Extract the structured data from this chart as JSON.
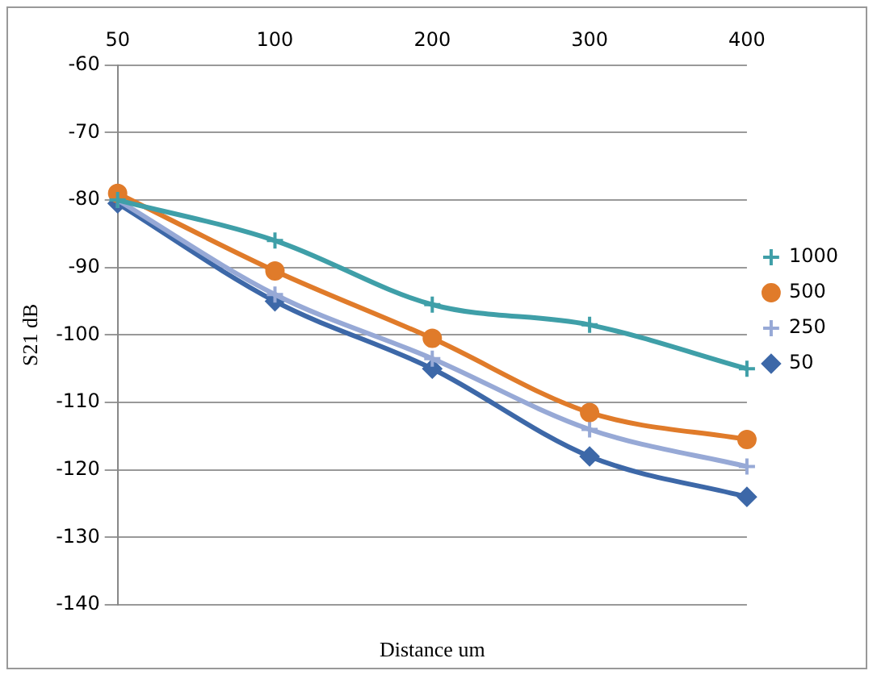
{
  "chart_data": {
    "type": "line",
    "xlabel": "Distance um",
    "ylabel": "S21 dB",
    "categories": [
      "50",
      "100",
      "200",
      "300",
      "400"
    ],
    "series": [
      {
        "name": "1000",
        "color": "#3f9fa8",
        "marker": "cross",
        "values": [
          -80,
          -86,
          -95.5,
          -98.5,
          -105
        ]
      },
      {
        "name": "500",
        "color": "#e07b2a",
        "marker": "circle",
        "values": [
          -79,
          -90.5,
          -100.5,
          -111.5,
          -115.5
        ]
      },
      {
        "name": "250",
        "color": "#97a9d6",
        "marker": "cross",
        "values": [
          -80,
          -94,
          -103.5,
          -114,
          -119.5
        ]
      },
      {
        "name": "50",
        "color": "#3d68a8",
        "marker": "diamond",
        "values": [
          -80.5,
          -95,
          -105,
          -118,
          -124
        ]
      }
    ],
    "ylim": [
      -140,
      -60
    ],
    "yticks": [
      -140,
      -130,
      -120,
      -110,
      -100,
      -90,
      -80,
      -70,
      -60
    ],
    "grid": "y",
    "legend": "right",
    "line_style": "solid"
  }
}
